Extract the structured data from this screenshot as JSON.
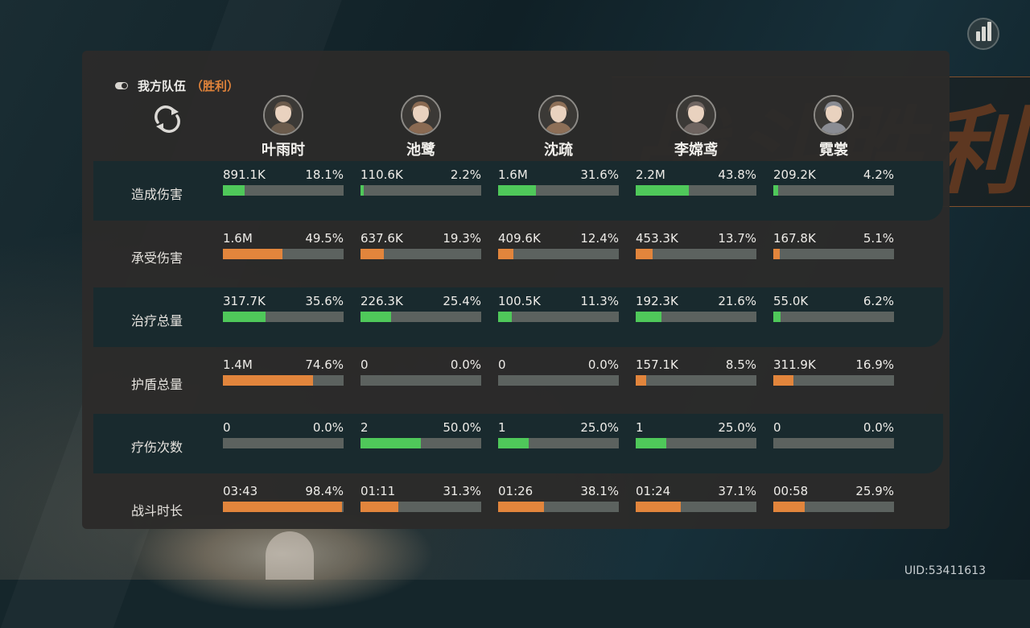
{
  "colors": {
    "green": "#4fc85a",
    "orange": "#e2853c",
    "track": "#5c625f",
    "accent": "#e0833a"
  },
  "background": {
    "victory_text": "战斗胜利"
  },
  "team": {
    "label": "我方队伍",
    "result": "（胜利）"
  },
  "icons": {
    "toggle": "toggle-icon",
    "refresh": "refresh-icon",
    "stats": "bar-chart-icon"
  },
  "characters": [
    {
      "name": "叶雨时"
    },
    {
      "name": "池鹭"
    },
    {
      "name": "沈疏"
    },
    {
      "name": "李嫦鸢"
    },
    {
      "name": "霓裳"
    }
  ],
  "rows": [
    {
      "label": "造成伤害",
      "color": "green",
      "highlight": true,
      "cells": [
        {
          "value": "891.1K",
          "pct": "18.1%",
          "ratio": 0.181
        },
        {
          "value": "110.6K",
          "pct": "2.2%",
          "ratio": 0.022
        },
        {
          "value": "1.6M",
          "pct": "31.6%",
          "ratio": 0.316
        },
        {
          "value": "2.2M",
          "pct": "43.8%",
          "ratio": 0.438
        },
        {
          "value": "209.2K",
          "pct": "4.2%",
          "ratio": 0.042
        }
      ]
    },
    {
      "label": "承受伤害",
      "color": "orange",
      "highlight": false,
      "cells": [
        {
          "value": "1.6M",
          "pct": "49.5%",
          "ratio": 0.495
        },
        {
          "value": "637.6K",
          "pct": "19.3%",
          "ratio": 0.193
        },
        {
          "value": "409.6K",
          "pct": "12.4%",
          "ratio": 0.124
        },
        {
          "value": "453.3K",
          "pct": "13.7%",
          "ratio": 0.137
        },
        {
          "value": "167.8K",
          "pct": "5.1%",
          "ratio": 0.051
        }
      ]
    },
    {
      "label": "治疗总量",
      "color": "green",
      "highlight": true,
      "cells": [
        {
          "value": "317.7K",
          "pct": "35.6%",
          "ratio": 0.356
        },
        {
          "value": "226.3K",
          "pct": "25.4%",
          "ratio": 0.254
        },
        {
          "value": "100.5K",
          "pct": "11.3%",
          "ratio": 0.113
        },
        {
          "value": "192.3K",
          "pct": "21.6%",
          "ratio": 0.216
        },
        {
          "value": "55.0K",
          "pct": "6.2%",
          "ratio": 0.062
        }
      ]
    },
    {
      "label": "护盾总量",
      "color": "orange",
      "highlight": false,
      "cells": [
        {
          "value": "1.4M",
          "pct": "74.6%",
          "ratio": 0.746
        },
        {
          "value": "0",
          "pct": "0.0%",
          "ratio": 0
        },
        {
          "value": "0",
          "pct": "0.0%",
          "ratio": 0
        },
        {
          "value": "157.1K",
          "pct": "8.5%",
          "ratio": 0.085
        },
        {
          "value": "311.9K",
          "pct": "16.9%",
          "ratio": 0.169
        }
      ]
    },
    {
      "label": "疗伤次数",
      "color": "green",
      "highlight": true,
      "cells": [
        {
          "value": "0",
          "pct": "0.0%",
          "ratio": 0
        },
        {
          "value": "2",
          "pct": "50.0%",
          "ratio": 0.5
        },
        {
          "value": "1",
          "pct": "25.0%",
          "ratio": 0.25
        },
        {
          "value": "1",
          "pct": "25.0%",
          "ratio": 0.25
        },
        {
          "value": "0",
          "pct": "0.0%",
          "ratio": 0
        }
      ]
    },
    {
      "label": "战斗时长",
      "color": "orange",
      "highlight": false,
      "cells": [
        {
          "value": "03:43",
          "pct": "98.4%",
          "ratio": 0.984
        },
        {
          "value": "01:11",
          "pct": "31.3%",
          "ratio": 0.313
        },
        {
          "value": "01:26",
          "pct": "38.1%",
          "ratio": 0.381
        },
        {
          "value": "01:24",
          "pct": "37.1%",
          "ratio": 0.371
        },
        {
          "value": "00:58",
          "pct": "25.9%",
          "ratio": 0.259
        }
      ]
    }
  ],
  "uid": "UID:53411613"
}
